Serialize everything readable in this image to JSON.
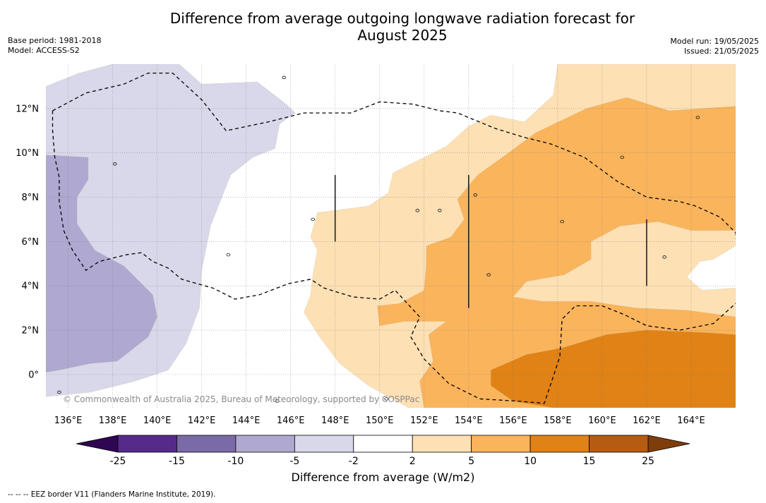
{
  "title": [
    "Difference from average outgoing longwave radiation forecast for",
    "August 2025"
  ],
  "meta_left": [
    "Base period: 1981-2018",
    "Model: ACCESS-S2"
  ],
  "meta_right": [
    "Model run: 19/05/2025",
    "Issued: 21/05/2025"
  ],
  "copyright": "© Commonwealth of Australia 2025, Bureau of Meteorology, supported by COSPPac",
  "footnote": "--  --  -- EEZ border V11 (Flanders Marine Institute, 2019).",
  "chart_data": {
    "type": "heatmap",
    "title": "Difference from average outgoing longwave radiation forecast for August 2025",
    "xlim": [
      135.0,
      166.0
    ],
    "ylim": [
      -1.5,
      14.0
    ],
    "x_ticks": [
      136,
      138,
      140,
      142,
      144,
      146,
      148,
      150,
      152,
      154,
      156,
      158,
      160,
      162,
      164
    ],
    "x_tick_labels": [
      "136°E",
      "138°E",
      "140°E",
      "142°E",
      "144°E",
      "146°E",
      "148°E",
      "150°E",
      "152°E",
      "154°E",
      "156°E",
      "158°E",
      "160°E",
      "162°E",
      "164°E"
    ],
    "y_ticks": [
      0,
      2,
      4,
      6,
      8,
      10,
      12
    ],
    "y_tick_labels": [
      "0°",
      "2°N",
      "4°N",
      "6°N",
      "8°N",
      "10°N",
      "12°N"
    ],
    "grid": true,
    "colorbar": {
      "label": "Difference from average (W/m2)",
      "levels": [
        -25,
        -15,
        -10,
        -5,
        -2,
        2,
        5,
        10,
        15,
        25
      ],
      "level_labels": [
        "-25",
        "-15",
        "-10",
        "-5",
        "-2",
        "2",
        "5",
        "10",
        "15",
        "25"
      ],
      "colors": [
        "#552a88",
        "#7b6aa8",
        "#afa8d0",
        "#d8d8ea",
        "#ffffff",
        "#fde0b4",
        "#fab45c",
        "#e08215",
        "#b55c12"
      ],
      "under_color": "#2e0652",
      "over_color": "#7f3d0b",
      "extend": "both"
    },
    "regions": [
      {
        "level": "-5 to -2",
        "color": "#d8d8ea",
        "points": [
          [
            135,
            13.0
          ],
          [
            136.5,
            13.6
          ],
          [
            138,
            14.0
          ],
          [
            141,
            14.0
          ],
          [
            142,
            13.1
          ],
          [
            144.5,
            13.2
          ],
          [
            145.8,
            12.2
          ],
          [
            146.2,
            11.8
          ],
          [
            145.5,
            11.3
          ],
          [
            145.3,
            10.2
          ],
          [
            144.3,
            9.8
          ],
          [
            143.3,
            9.0
          ],
          [
            142.4,
            6.7
          ],
          [
            142.0,
            4.7
          ],
          [
            141.9,
            3.0
          ],
          [
            141.3,
            1.4
          ],
          [
            140.5,
            0.2
          ],
          [
            139,
            -0.3
          ],
          [
            137,
            -0.8
          ],
          [
            135,
            -1.0
          ]
        ]
      },
      {
        "level": "-10 to -5",
        "color": "#afa8d0",
        "points": [
          [
            135,
            9.9
          ],
          [
            136.9,
            9.8
          ],
          [
            136.9,
            8.8
          ],
          [
            136.4,
            8.0
          ],
          [
            136.4,
            6.8
          ],
          [
            137.2,
            5.6
          ],
          [
            138.5,
            4.9
          ],
          [
            139.2,
            4.2
          ],
          [
            139.8,
            3.6
          ],
          [
            140.0,
            2.6
          ],
          [
            139.6,
            1.7
          ],
          [
            138.2,
            0.6
          ],
          [
            137.0,
            0.5
          ],
          [
            135.6,
            0.2
          ],
          [
            135,
            0.1
          ]
        ]
      },
      {
        "level": "2 to 5",
        "color": "#fde0b4",
        "points": [
          [
            147.2,
            7.3
          ],
          [
            149.5,
            7.6
          ],
          [
            150.4,
            8.2
          ],
          [
            150.6,
            9.1
          ],
          [
            151.6,
            9.6
          ],
          [
            153,
            10.3
          ],
          [
            154.0,
            11.2
          ],
          [
            155.0,
            11.7
          ],
          [
            156.5,
            11.4
          ],
          [
            157.8,
            12.6
          ],
          [
            158.0,
            14.0
          ],
          [
            166,
            14.0
          ],
          [
            166,
            -1.5
          ],
          [
            151.3,
            -1.5
          ],
          [
            149.5,
            -0.5
          ],
          [
            148.2,
            0.5
          ],
          [
            147.3,
            1.7
          ],
          [
            146.6,
            2.8
          ],
          [
            146.9,
            3.6
          ],
          [
            147.0,
            4.5
          ],
          [
            147.2,
            5.6
          ],
          [
            146.9,
            6.2
          ]
        ]
      },
      {
        "level": "-5 to -2 inset",
        "color": "#ffffff",
        "points": [
          [
            166,
            5.8
          ],
          [
            165.0,
            5.2
          ],
          [
            164.4,
            5.1
          ],
          [
            163.8,
            4.4
          ],
          [
            164.5,
            3.8
          ],
          [
            166,
            3.9
          ]
        ]
      },
      {
        "level": "5 to 10",
        "color": "#fab45c",
        "points": [
          [
            153.5,
            7.9
          ],
          [
            154.4,
            9.0
          ],
          [
            155.8,
            10.0
          ],
          [
            157.0,
            10.9
          ],
          [
            159.3,
            12.0
          ],
          [
            161.1,
            12.5
          ],
          [
            163.0,
            11.9
          ],
          [
            166,
            12.1
          ],
          [
            166,
            6.5
          ],
          [
            164.0,
            6.5
          ],
          [
            162.5,
            6.9
          ],
          [
            160.8,
            6.7
          ],
          [
            159.5,
            6.0
          ],
          [
            159.5,
            5.2
          ],
          [
            158.3,
            4.5
          ],
          [
            156.6,
            4.2
          ],
          [
            156.0,
            3.5
          ],
          [
            157.3,
            3.3
          ],
          [
            159.5,
            3.3
          ],
          [
            161.5,
            3.0
          ],
          [
            163.8,
            2.9
          ],
          [
            166,
            2.6
          ],
          [
            166,
            -1.5
          ],
          [
            152.0,
            -1.5
          ],
          [
            151.8,
            -0.3
          ],
          [
            152.4,
            0.6
          ],
          [
            152.2,
            1.8
          ],
          [
            153.0,
            2.4
          ],
          [
            151.1,
            2.4
          ],
          [
            150.0,
            2.2
          ],
          [
            149.9,
            3.1
          ],
          [
            150.9,
            3.2
          ],
          [
            152.0,
            3.8
          ],
          [
            152.1,
            5.0
          ],
          [
            152.1,
            5.8
          ],
          [
            153.2,
            6.2
          ],
          [
            153.8,
            7.0
          ]
        ]
      },
      {
        "level": "10 to 15",
        "color": "#e08215",
        "points": [
          [
            155.0,
            0.2
          ],
          [
            156.6,
            0.9
          ],
          [
            158.2,
            1.2
          ],
          [
            160.2,
            1.8
          ],
          [
            162.0,
            2.0
          ],
          [
            164.5,
            1.9
          ],
          [
            166,
            1.8
          ],
          [
            166,
            -1.5
          ],
          [
            157.8,
            -1.5
          ],
          [
            156.0,
            -1.2
          ],
          [
            155.0,
            -0.5
          ]
        ]
      }
    ],
    "eez_borders": [
      [
        [
          135.3,
          11.9
        ],
        [
          136.8,
          12.7
        ],
        [
          138.5,
          13.1
        ],
        [
          139.6,
          13.6
        ],
        [
          140.7,
          13.6
        ],
        [
          142.0,
          12.4
        ],
        [
          143.1,
          11.0
        ],
        [
          145.0,
          11.4
        ],
        [
          146.6,
          11.8
        ],
        [
          147.8,
          11.8
        ],
        [
          148.7,
          11.8
        ],
        [
          150.0,
          12.3
        ],
        [
          151.5,
          12.2
        ],
        [
          152.7,
          11.9
        ],
        [
          153.5,
          11.8
        ],
        [
          155.2,
          11.1
        ],
        [
          156.5,
          10.7
        ],
        [
          157.7,
          10.4
        ],
        [
          159.2,
          9.8
        ],
        [
          160.7,
          8.7
        ],
        [
          162.0,
          8.0
        ],
        [
          163.5,
          7.8
        ],
        [
          164.2,
          7.6
        ],
        [
          165.3,
          7.1
        ],
        [
          166.0,
          6.4
        ],
        [
          166.1,
          4.7
        ],
        [
          166.1,
          3.3
        ],
        [
          165.0,
          2.3
        ],
        [
          163.5,
          2.0
        ],
        [
          162.0,
          2.2
        ],
        [
          161.0,
          2.7
        ],
        [
          160.0,
          3.1
        ],
        [
          158.8,
          3.1
        ],
        [
          158.2,
          2.5
        ],
        [
          158.1,
          0.8
        ],
        [
          157.4,
          -1.3
        ],
        [
          156.2,
          -1.2
        ],
        [
          154.5,
          -1.1
        ],
        [
          153.1,
          -0.4
        ],
        [
          152.0,
          0.7
        ],
        [
          151.4,
          1.7
        ],
        [
          151.8,
          2.6
        ],
        [
          150.7,
          3.8
        ],
        [
          150.0,
          3.4
        ],
        [
          148.8,
          3.5
        ],
        [
          147.5,
          3.9
        ],
        [
          146.9,
          4.3
        ],
        [
          145.9,
          4.1
        ],
        [
          144.6,
          3.6
        ],
        [
          143.5,
          3.4
        ],
        [
          142.5,
          3.9
        ],
        [
          141.1,
          4.3
        ],
        [
          140.5,
          4.8
        ],
        [
          139.8,
          5.1
        ],
        [
          139.3,
          5.5
        ],
        [
          138.6,
          5.4
        ],
        [
          137.4,
          5.1
        ],
        [
          136.8,
          4.7
        ],
        [
          136.2,
          5.6
        ],
        [
          135.8,
          6.5
        ],
        [
          135.6,
          7.8
        ],
        [
          135.6,
          8.9
        ],
        [
          135.4,
          9.8
        ],
        [
          135.3,
          11.0
        ],
        [
          135.3,
          11.9
        ]
      ]
    ],
    "vertical_segments": [
      {
        "x": 148.0,
        "y0": 6.0,
        "y1": 9.0
      },
      {
        "x": 154.0,
        "y0": 3.0,
        "y1": 9.0
      },
      {
        "x": 162.0,
        "y0": 4.0,
        "y1": 7.0
      }
    ]
  }
}
